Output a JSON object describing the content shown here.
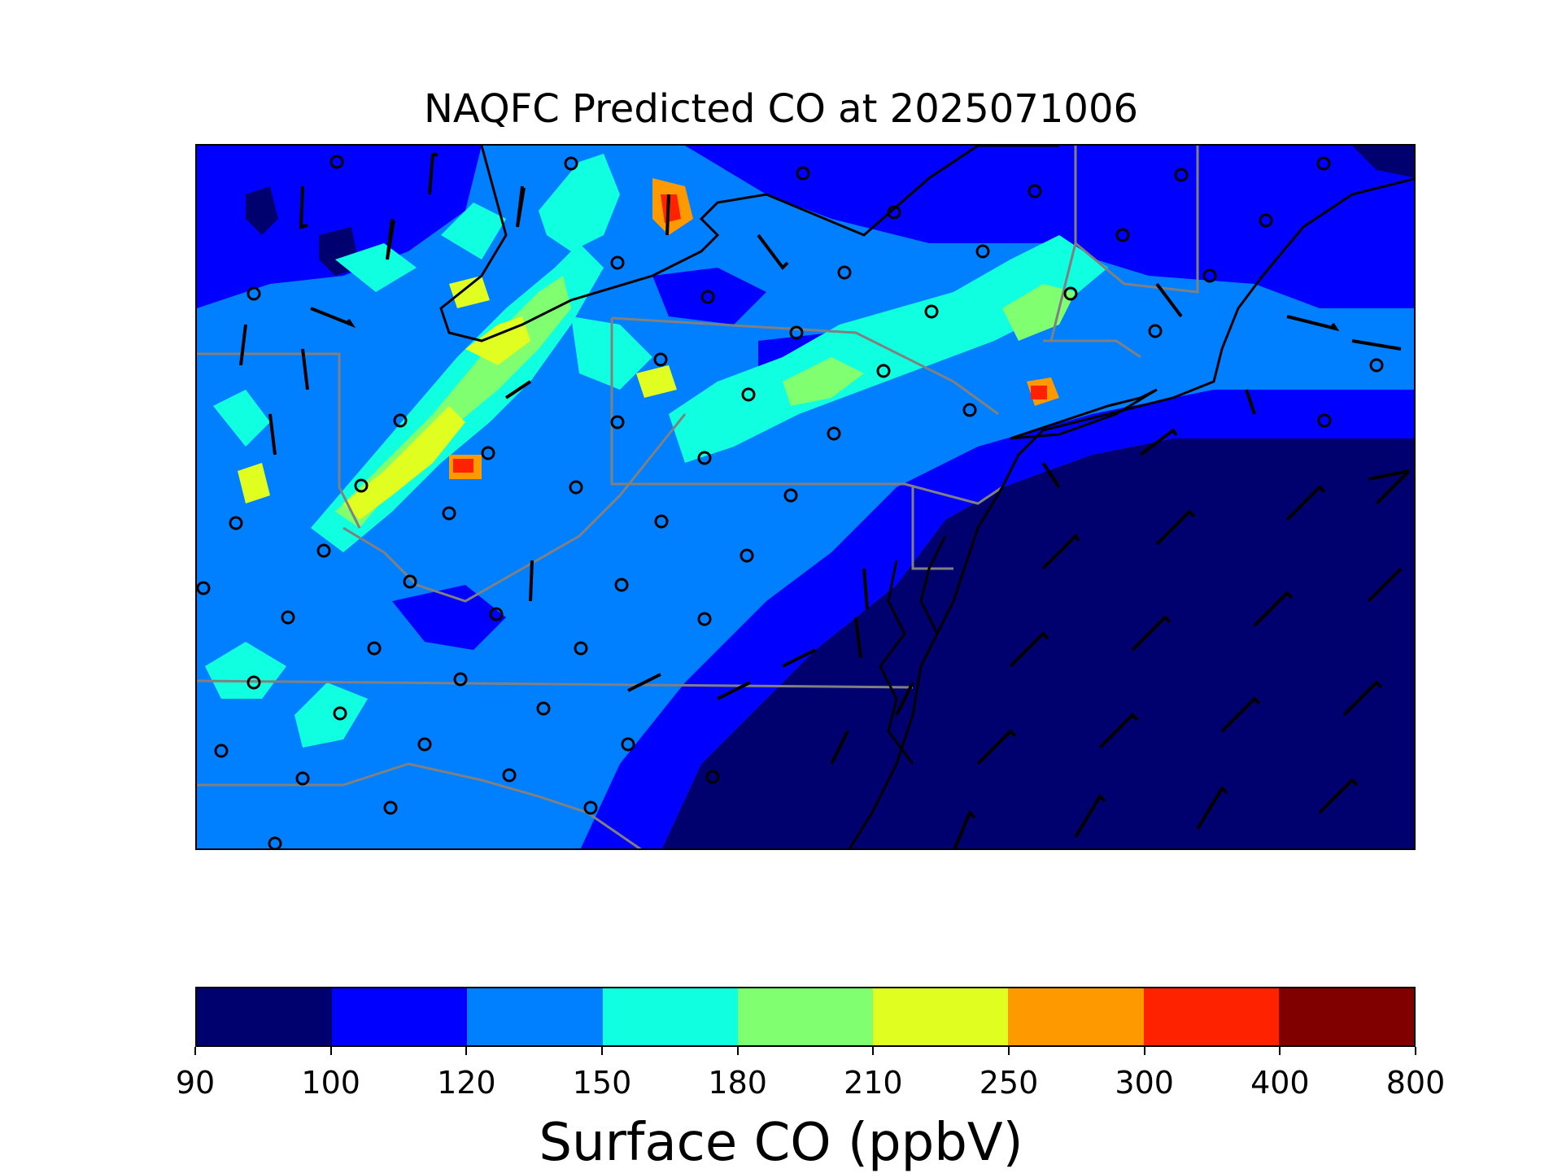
{
  "title": "NAQFC Predicted CO at 2025071006",
  "colorbar": {
    "label": "Surface CO (ppbV)",
    "boundaries": [
      "90",
      "100",
      "120",
      "150",
      "180",
      "210",
      "250",
      "300",
      "400",
      "800"
    ],
    "colors": [
      "#00006e",
      "#0000ff",
      "#0080ff",
      "#10ffe0",
      "#80ff70",
      "#e0ff20",
      "#ff9900",
      "#ff2200",
      "#800000"
    ]
  },
  "map": {
    "ocean_color": "#00006e",
    "land_base_color": "#0080ff",
    "coastline_color": "#000000",
    "state_border_color": "#808080",
    "station_marker": "open circle",
    "wind_symbol": "wind barbs"
  }
}
